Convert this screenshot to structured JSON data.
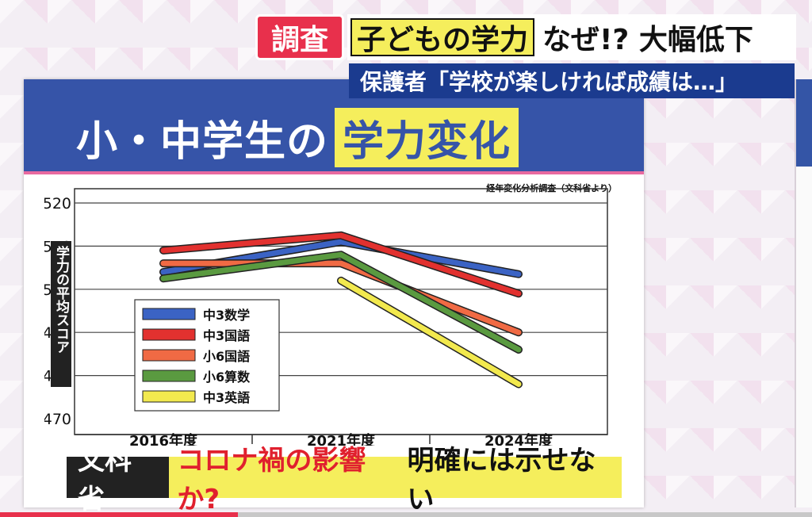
{
  "top_caption": {
    "badge": "調査",
    "highlight": "子どもの学力",
    "headline": "なぜ!? 大幅低下",
    "subline": "保護者「学校が楽しければ成績は…」"
  },
  "board": {
    "title_main": "小・中学生の",
    "title_highlight": "学力変化"
  },
  "bottom_caption": {
    "source": "文科省",
    "red_text": "コロナ禍の影響か?",
    "black_text": "明確には示せない"
  },
  "colors": {
    "header_blue": "#3654a8",
    "badge_red": "#e8304c",
    "highlight_yellow": "#f5ee5c"
  },
  "chart_data": {
    "type": "line",
    "title": "",
    "source_note": "経年変化分析調査（文科省より）",
    "ylabel": "学力の平均スコア",
    "xlabel": "",
    "ylim": [
      470,
      520
    ],
    "yticks": [
      470,
      480,
      490,
      500,
      510,
      520
    ],
    "grid": true,
    "legend_position": "lower-left",
    "categories": [
      "2016年度",
      "2021年度",
      "2024年度"
    ],
    "series": [
      {
        "name": "中3数学",
        "color": "#3b63c4",
        "values": [
          504,
          511,
          503.5
        ]
      },
      {
        "name": "中3国語",
        "color": "#e2312f",
        "values": [
          509,
          512.5,
          499
        ]
      },
      {
        "name": "小6国語",
        "color": "#f06a44",
        "values": [
          506,
          506,
          490
        ]
      },
      {
        "name": "小6算数",
        "color": "#5a9a40",
        "values": [
          502.5,
          508,
          486
        ]
      },
      {
        "name": "中3英語",
        "color": "#f2e94e",
        "values": [
          null,
          502,
          478
        ]
      }
    ]
  }
}
